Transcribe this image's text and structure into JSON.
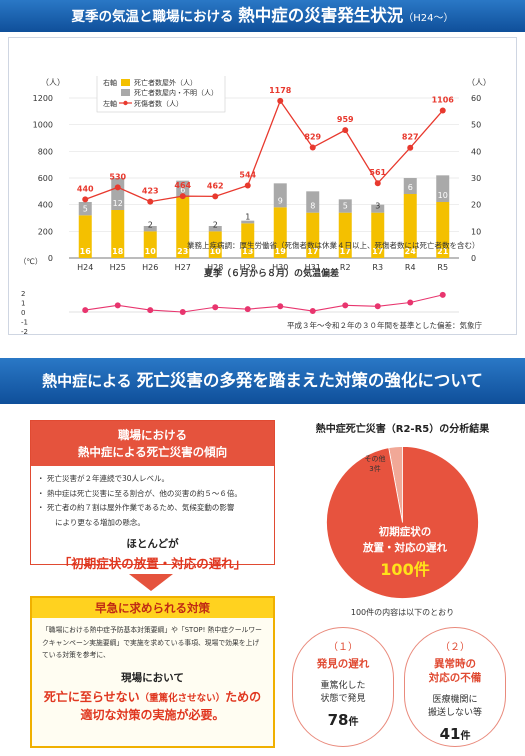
{
  "top_banner": {
    "prefix": "夏季の気温と職場における",
    "main": "熱中症の災害発生状況",
    "suffix": "（H24〜）"
  },
  "chart_data": [
    {
      "type": "bar",
      "ylabel_left": "（人）",
      "ylabel_right": "（人）",
      "ylim_left": [
        0,
        1200
      ],
      "ylim_right": [
        0,
        60
      ],
      "left_ticks": [
        0,
        200,
        400,
        600,
        800,
        1000,
        1200
      ],
      "right_ticks": [
        0,
        10,
        20,
        30,
        40,
        50,
        60
      ],
      "categories": [
        "H24",
        "H25",
        "H26",
        "H27",
        "H28",
        "H29",
        "H30",
        "H31",
        "R2",
        "R3",
        "R4",
        "R5"
      ],
      "series": [
        {
          "name": "死亡者数屋外（人）",
          "axis": "right",
          "color": "#f4c000",
          "values": [
            16,
            18,
            10,
            23,
            10,
            13,
            19,
            17,
            17,
            17,
            24,
            21
          ]
        },
        {
          "name": "死亡者数屋内・不明（人）",
          "axis": "right",
          "color": "#a9a9a9",
          "values": [
            5,
            12,
            2,
            6,
            2,
            1,
            9,
            8,
            5,
            3,
            6,
            10
          ]
        },
        {
          "name": "死傷者数（人）",
          "axis": "left",
          "color": "#e8392e",
          "type": "line",
          "values": [
            440,
            530,
            423,
            464,
            462,
            544,
            1178,
            829,
            959,
            561,
            827,
            1106
          ]
        }
      ],
      "legend": {
        "right_axis_label": "右軸",
        "left_axis_label": "左軸",
        "items": [
          "死亡者数屋外（人）",
          "死亡者数屋内・不明（人）",
          "死傷者数（人）"
        ]
      },
      "source_note": "業務上疾病調：厚生労働省（死傷者数は休業４日以上、死傷者数には死亡者数を含む）"
    },
    {
      "type": "line",
      "title": "夏季（６月から８月）の気温偏差",
      "ylabel": "（℃）",
      "ylim": [
        -2,
        2
      ],
      "ticks": [
        2,
        1,
        0,
        -1,
        -2
      ],
      "series": [
        {
          "color": "#e8356e",
          "values": [
            0.2,
            0.7,
            0.2,
            0.0,
            0.5,
            0.3,
            0.6,
            0.1,
            0.7,
            0.6,
            1.0,
            1.8
          ]
        }
      ],
      "source_note": "平成３年〜令和２年の３０年間を基準とした偏差：気象庁"
    },
    {
      "type": "pie",
      "title": "熱中症死亡災害（R2-R5）の分析結果",
      "slices": [
        {
          "label": "初期症状の放置・対応の遅れ",
          "value": 100,
          "value_label": "100件",
          "color": "#e7533e"
        },
        {
          "label": "その他",
          "value": 3,
          "value_label": "3件",
          "color": "#f1a897"
        }
      ]
    }
  ],
  "bottom_banner": {
    "prefix": "熱中症による",
    "main": "死亡災害の多発を踏まえた対策の強化について"
  },
  "trend": {
    "head_line1": "職場における",
    "head_line2": "熱中症による死亡災害の傾向",
    "items": [
      "死亡災害が２年連続で30人レベル。",
      "熱中症は死亡災害に至る割合が、他の災害の約５〜６倍。",
      "死亡者の約７割は屋外作業であるため、気候変動の影響",
      "により更なる増加の懸念。"
    ],
    "mostly": "ほとんどが",
    "delay": "「初期症状の放置・対応の遅れ」"
  },
  "urgent": {
    "head": "早急に求められる対策",
    "body": "「職場における熱中症予防基本対策要綱」や「STOP! 熱中症クールワークキャンペーン実施要綱」で実施を求めている事項、現場で効果を上げている対策を参考に、",
    "onsite": "現場において",
    "line1": "死亡に至らせない",
    "line1_paren": "（重篤化させない）",
    "line1_end": "ための",
    "line2": "適切な対策の実施が必要。"
  },
  "pie_note": "100件の内容は以下のとおり",
  "causes": [
    {
      "num": "（１）",
      "name_line1": "発見の遅れ",
      "name_line2": "",
      "desc_line1": "重篤化した",
      "desc_line2": "状態で発見",
      "count": "78",
      "unit": "件"
    },
    {
      "num": "（２）",
      "name_line1": "異常時の",
      "name_line2": "対応の不備",
      "desc_line1": "医療機関に",
      "desc_line2": "搬送しない等",
      "count": "41",
      "unit": "件"
    }
  ]
}
